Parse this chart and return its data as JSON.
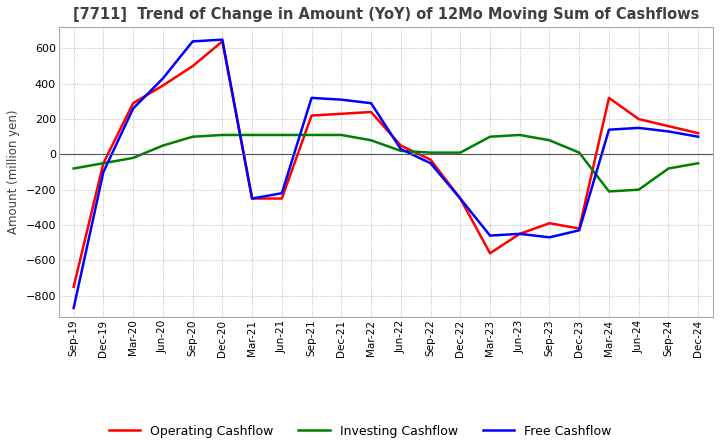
{
  "title": "[7711]  Trend of Change in Amount (YoY) of 12Mo Moving Sum of Cashflows",
  "ylabel": "Amount (million yen)",
  "x_labels": [
    "Sep-19",
    "Dec-19",
    "Mar-20",
    "Jun-20",
    "Sep-20",
    "Dec-20",
    "Mar-21",
    "Jun-21",
    "Sep-21",
    "Dec-21",
    "Mar-22",
    "Jun-22",
    "Sep-22",
    "Dec-22",
    "Mar-23",
    "Jun-23",
    "Sep-23",
    "Dec-23",
    "Mar-24",
    "Jun-24",
    "Sep-24",
    "Dec-24"
  ],
  "operating_cashflow": [
    -750,
    -50,
    290,
    390,
    500,
    640,
    -250,
    -250,
    220,
    230,
    240,
    50,
    -30,
    -250,
    -560,
    -450,
    -390,
    -420,
    320,
    200,
    160,
    120
  ],
  "investing_cashflow": [
    -80,
    -50,
    -20,
    50,
    100,
    110,
    110,
    110,
    110,
    110,
    80,
    20,
    10,
    10,
    100,
    110,
    80,
    10,
    -210,
    -200,
    -80,
    -50
  ],
  "free_cashflow": [
    -870,
    -100,
    260,
    430,
    640,
    650,
    -250,
    -220,
    320,
    310,
    290,
    30,
    -50,
    -250,
    -460,
    -450,
    -470,
    -430,
    140,
    150,
    130,
    100
  ],
  "ylim": [
    -920,
    720
  ],
  "yticks": [
    -800,
    -600,
    -400,
    -200,
    0,
    200,
    400,
    600
  ],
  "line_colors": {
    "operating": "#ff0000",
    "investing": "#008000",
    "free": "#0000ff"
  },
  "line_width": 1.8,
  "background_color": "#ffffff",
  "grid_color": "#aaaaaa",
  "title_color": "#404040",
  "legend_labels": [
    "Operating Cashflow",
    "Investing Cashflow",
    "Free Cashflow"
  ]
}
